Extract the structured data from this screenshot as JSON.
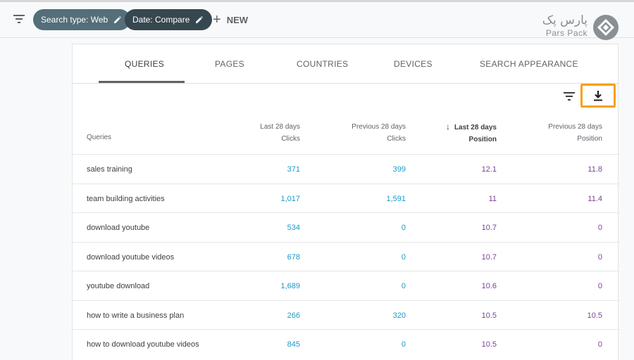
{
  "filters": {
    "chips": [
      {
        "label": "Search type: Web"
      },
      {
        "label": "Date: Compare"
      }
    ],
    "new_label": "NEW"
  },
  "brand": {
    "name_fa": "پارس پک",
    "name_en": "Pars Pack"
  },
  "tabs": [
    {
      "label": "QUERIES",
      "active": true
    },
    {
      "label": "PAGES",
      "active": false
    },
    {
      "label": "COUNTRIES",
      "active": false
    },
    {
      "label": "DEVICES",
      "active": false
    },
    {
      "label": "SEARCH APPEARANCE",
      "active": false
    }
  ],
  "table": {
    "headers": {
      "query": "Queries",
      "col1_line1": "Last 28 days",
      "col1_line2": "Clicks",
      "col2_line1": "Previous 28 days",
      "col2_line2": "Clicks",
      "col3_line1": "Last 28 days",
      "col3_line2": "Position",
      "col4_line1": "Previous 28 days",
      "col4_line2": "Position"
    },
    "rows": [
      {
        "query": "sales training",
        "c1": "371",
        "c2": "399",
        "c3": "12.1",
        "c4": "11.8"
      },
      {
        "query": "team building activities",
        "c1": "1,017",
        "c2": "1,591",
        "c3": "11",
        "c4": "11.4"
      },
      {
        "query": "download youtube",
        "c1": "534",
        "c2": "0",
        "c3": "10.7",
        "c4": "0"
      },
      {
        "query": "download youtube videos",
        "c1": "678",
        "c2": "0",
        "c3": "10.7",
        "c4": "0"
      },
      {
        "query": "youtube download",
        "c1": "1,689",
        "c2": "0",
        "c3": "10.6",
        "c4": "0"
      },
      {
        "query": "how to write a business plan",
        "c1": "266",
        "c2": "320",
        "c3": "10.5",
        "c4": "10.5"
      },
      {
        "query": "how to download youtube videos",
        "c1": "845",
        "c2": "0",
        "c3": "10.5",
        "c4": "0"
      }
    ]
  },
  "colors": {
    "clicks": "#1a9ac8",
    "position": "#7b3f95",
    "highlight": "#f5a11c"
  }
}
